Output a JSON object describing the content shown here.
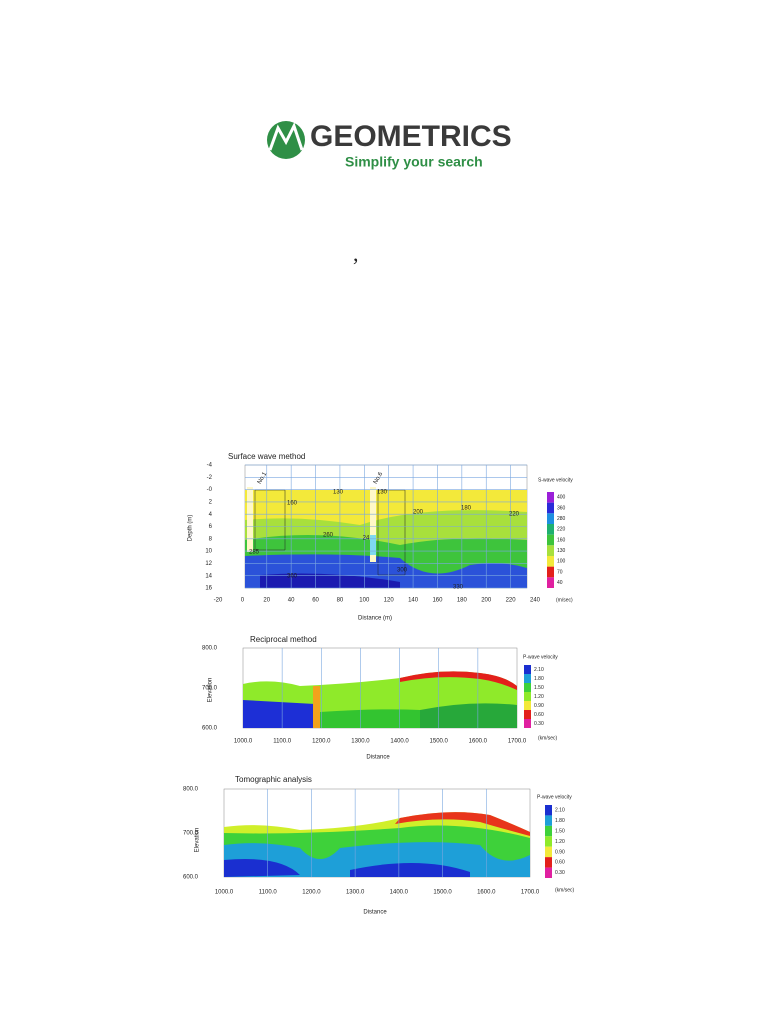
{
  "header": {
    "logo": "GEOMETRICS",
    "tagline": "Simplify your search"
  },
  "mark": ",",
  "figures": [
    {
      "title": "Surface wave method",
      "x_label": "Distance (m)",
      "y_label": "Depth (m)",
      "x_ticks": [
        "-20",
        "0",
        "20",
        "40",
        "60",
        "80",
        "100",
        "120",
        "140",
        "160",
        "180",
        "200",
        "220",
        "240"
      ],
      "y_ticks": [
        "-4",
        "-2",
        "-0",
        "2",
        "4",
        "6",
        "8",
        "10",
        "12",
        "14",
        "16"
      ],
      "legend_title": "S-wave velocity",
      "legend_labels": [
        "400",
        "360",
        "280",
        "220",
        "160",
        "130",
        "100",
        "70",
        "40"
      ],
      "legend_unit": "(m/sec)",
      "annotations": [
        "No.1",
        "No.6",
        "130",
        "160",
        "200",
        "180",
        "220",
        "260",
        "24",
        "285",
        "360",
        "300",
        "330",
        "130"
      ]
    },
    {
      "title": "Reciprocal method",
      "x_label": "Distance",
      "y_label": "Elevation",
      "x_ticks": [
        "1000.0",
        "1100.0",
        "1200.0",
        "1300.0",
        "1400.0",
        "1500.0",
        "1600.0",
        "1700.0"
      ],
      "y_ticks": [
        "800.0",
        "700.0",
        "600.0"
      ],
      "legend_title": "P-wave velocity",
      "legend_labels": [
        "2.10",
        "1.80",
        "1.50",
        "1.20",
        "0.90",
        "0.60",
        "0.30"
      ],
      "legend_unit": "(km/sec)",
      "annotations": []
    },
    {
      "title": "Tomographic analysis",
      "x_label": "Distance",
      "y_label": "Elevation",
      "x_ticks": [
        "1000.0",
        "1100.0",
        "1200.0",
        "1300.0",
        "1400.0",
        "1500.0",
        "1600.0",
        "1700.0"
      ],
      "y_ticks": [
        "800.0",
        "700.0",
        "600.0"
      ],
      "legend_title": "P-wave velocity",
      "legend_labels": [
        "2.10",
        "1.80",
        "1.50",
        "1.20",
        "0.90",
        "0.60",
        "0.30"
      ],
      "legend_unit": "(km/sec)",
      "annotations": []
    }
  ]
}
